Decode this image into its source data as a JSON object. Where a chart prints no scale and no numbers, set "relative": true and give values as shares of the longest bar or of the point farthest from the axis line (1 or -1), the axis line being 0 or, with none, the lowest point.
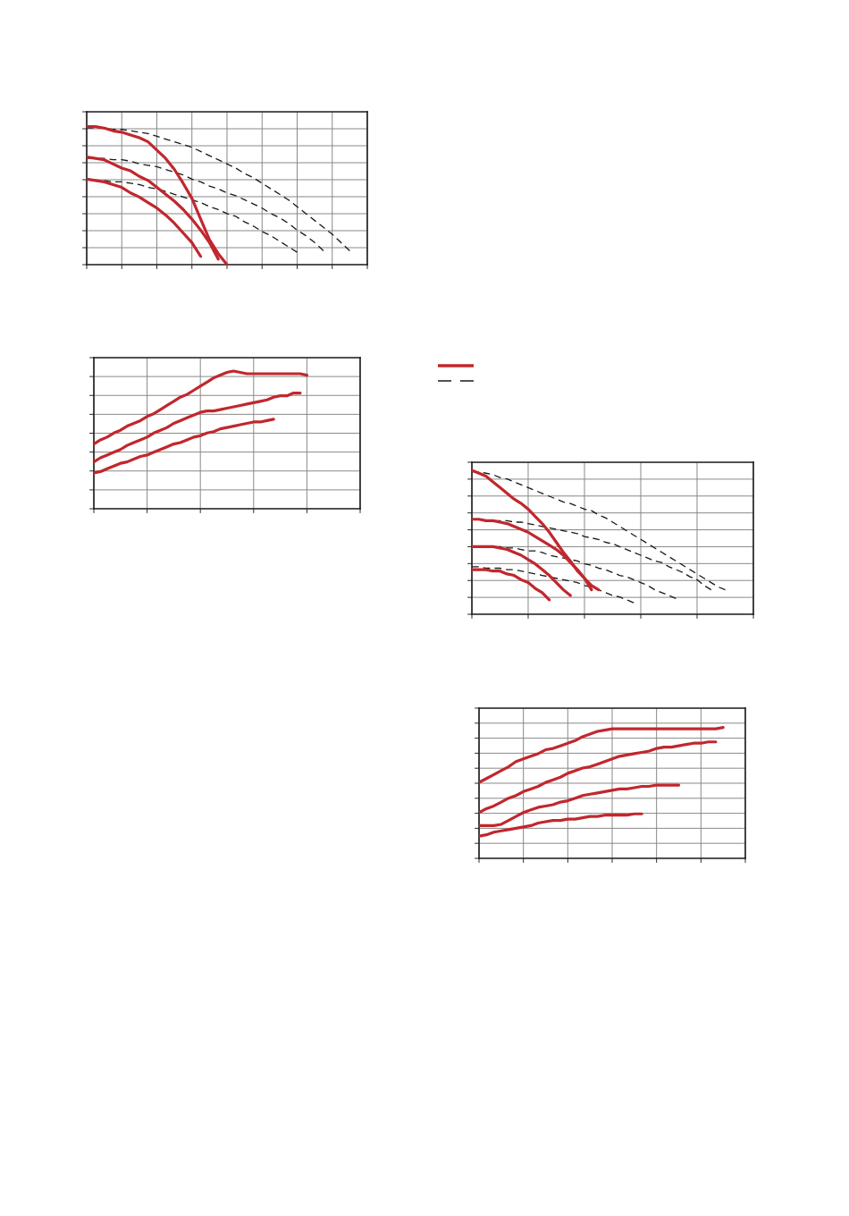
{
  "chart_data": [
    {
      "type": "line",
      "relative": true,
      "grid": true,
      "categories": [
        null,
        null,
        null,
        null,
        null,
        null,
        null,
        null,
        null,
        null,
        null,
        null,
        null,
        null,
        null,
        null,
        null,
        null,
        null,
        null,
        null,
        null,
        null,
        null,
        null,
        null,
        null,
        null,
        null,
        null,
        null,
        null,
        null
      ],
      "series": [
        {
          "color": "#c1272d",
          "line_style": "solid",
          "values": [
            1,
            1,
            0.99,
            0.97,
            0.96,
            0.94,
            0.92,
            0.89,
            0.83,
            0.77,
            0.69,
            0.59,
            0.48,
            0.33,
            0.18,
            0.08,
            0,
            null,
            null,
            null,
            null,
            null,
            null,
            null,
            null,
            null,
            null,
            null,
            null,
            null,
            null,
            null,
            null
          ]
        },
        {
          "color": "#c1272d",
          "line_style": "solid",
          "values": [
            0.78,
            0.77,
            0.76,
            0.73,
            0.7,
            0.68,
            0.64,
            0.61,
            0.56,
            0.51,
            0.46,
            0.4,
            0.33,
            0.25,
            0.16,
            0.04,
            null,
            null,
            null,
            null,
            null,
            null,
            null,
            null,
            null,
            null,
            null,
            null,
            null,
            null,
            null,
            null,
            null
          ]
        },
        {
          "color": "#c1272d",
          "line_style": "solid",
          "values": [
            0.62,
            0.61,
            0.6,
            0.58,
            0.56,
            0.52,
            0.49,
            0.45,
            0.41,
            0.36,
            0.3,
            0.23,
            0.16,
            0.06,
            null,
            null,
            null,
            null,
            null,
            null,
            null,
            null,
            null,
            null,
            null,
            null,
            null,
            null,
            null,
            null,
            null,
            null,
            null
          ]
        },
        {
          "color": "#1a1a1a",
          "line_style": "dashed",
          "values": [
            0.99,
            0.99,
            0.99,
            0.98,
            0.98,
            0.97,
            0.96,
            0.95,
            0.93,
            0.91,
            0.89,
            0.87,
            0.85,
            0.82,
            0.79,
            0.76,
            0.73,
            0.7,
            0.66,
            0.63,
            0.59,
            0.55,
            0.51,
            0.47,
            0.42,
            0.37,
            0.32,
            0.27,
            0.22,
            0.16,
            0.1,
            null,
            null
          ]
        },
        {
          "color": "#1a1a1a",
          "line_style": "dashed",
          "values": [
            0.77,
            0.77,
            0.77,
            0.76,
            0.76,
            0.75,
            0.73,
            0.72,
            0.71,
            0.69,
            0.67,
            0.65,
            0.62,
            0.6,
            0.57,
            0.55,
            0.52,
            0.5,
            0.47,
            0.44,
            0.41,
            0.37,
            0.34,
            0.3,
            0.25,
            0.21,
            0.16,
            0.1,
            null,
            null,
            null,
            null,
            null
          ]
        },
        {
          "color": "#1a1a1a",
          "line_style": "dashed",
          "values": [
            null,
            null,
            0.61,
            0.6,
            0.6,
            0.59,
            0.58,
            0.56,
            0.55,
            0.53,
            0.51,
            0.49,
            0.47,
            0.45,
            0.42,
            0.4,
            0.37,
            0.35,
            0.31,
            0.28,
            0.24,
            0.21,
            0.17,
            0.13,
            0.09,
            null,
            null,
            null,
            null,
            null,
            null,
            null,
            null
          ]
        }
      ]
    },
    {
      "type": "line",
      "relative": true,
      "grid": true,
      "categories": [
        null,
        null,
        null,
        null,
        null,
        null,
        null,
        null,
        null,
        null,
        null,
        null,
        null,
        null,
        null,
        null,
        null,
        null,
        null,
        null,
        null,
        null,
        null,
        null,
        null,
        null,
        null,
        null,
        null,
        null,
        null,
        null,
        null,
        null,
        null,
        null,
        null,
        null,
        null,
        null,
        null
      ],
      "series": [
        {
          "color": "#c1272d",
          "line_style": "solid",
          "values": [
            0.47,
            0.5,
            0.52,
            0.55,
            0.57,
            0.6,
            0.62,
            0.64,
            0.67,
            0.69,
            0.72,
            0.75,
            0.78,
            0.81,
            0.83,
            0.86,
            0.89,
            0.92,
            0.95,
            0.97,
            0.99,
            1,
            0.99,
            0.98,
            0.98,
            0.98,
            0.98,
            0.98,
            0.98,
            0.98,
            0.98,
            0.98,
            0.97,
            null,
            null,
            null,
            null,
            null,
            null,
            null,
            null
          ]
        },
        {
          "color": "#c1272d",
          "line_style": "solid",
          "values": [
            0.34,
            0.37,
            0.39,
            0.41,
            0.43,
            0.46,
            0.48,
            0.5,
            0.52,
            0.55,
            0.57,
            0.59,
            0.62,
            0.64,
            0.66,
            0.68,
            0.7,
            0.71,
            0.71,
            0.72,
            0.73,
            0.74,
            0.75,
            0.76,
            0.77,
            0.78,
            0.79,
            0.81,
            0.82,
            0.82,
            0.84,
            0.84,
            null,
            null,
            null,
            null,
            null,
            null,
            null,
            null,
            null
          ]
        },
        {
          "color": "#c1272d",
          "line_style": "solid",
          "values": [
            0.26,
            0.27,
            0.29,
            0.31,
            0.33,
            0.34,
            0.36,
            0.38,
            0.39,
            0.41,
            0.43,
            0.45,
            0.47,
            0.48,
            0.5,
            0.52,
            0.53,
            0.55,
            0.56,
            0.58,
            0.59,
            0.6,
            0.61,
            0.62,
            0.63,
            0.63,
            0.64,
            0.65,
            null,
            null,
            null,
            null,
            null,
            null,
            null,
            null,
            null,
            null,
            null,
            null,
            null
          ]
        }
      ]
    },
    {
      "type": "line",
      "relative": true,
      "grid": true,
      "categories": [
        null,
        null,
        null,
        null,
        null,
        null,
        null,
        null,
        null,
        null,
        null,
        null,
        null,
        null,
        null,
        null,
        null,
        null,
        null,
        null,
        null,
        null,
        null,
        null,
        null,
        null,
        null,
        null,
        null,
        null,
        null,
        null,
        null,
        null,
        null,
        null,
        null,
        null,
        null,
        null,
        null
      ],
      "series": [
        {
          "color": "#c1272d",
          "line_style": "solid",
          "values": [
            1,
            0.98,
            0.96,
            0.92,
            0.88,
            0.84,
            0.8,
            0.77,
            0.73,
            0.68,
            0.63,
            0.57,
            0.5,
            0.43,
            0.37,
            0.3,
            0.25,
            0.2,
            0.17,
            null,
            null,
            null,
            null,
            null,
            null,
            null,
            null,
            null,
            null,
            null,
            null,
            null,
            null,
            null,
            null,
            null,
            null,
            null,
            null,
            null,
            null
          ]
        },
        {
          "color": "#c1272d",
          "line_style": "solid",
          "values": [
            0.66,
            0.66,
            0.65,
            0.65,
            0.64,
            0.63,
            0.61,
            0.59,
            0.57,
            0.54,
            0.51,
            0.48,
            0.45,
            0.41,
            0.36,
            0.31,
            0.25,
            0.17,
            null,
            null,
            null,
            null,
            null,
            null,
            null,
            null,
            null,
            null,
            null,
            null,
            null,
            null,
            null,
            null,
            null,
            null,
            null,
            null,
            null,
            null,
            null
          ]
        },
        {
          "color": "#c1272d",
          "line_style": "solid",
          "values": [
            0.47,
            0.47,
            0.47,
            0.47,
            0.46,
            0.45,
            0.43,
            0.41,
            0.38,
            0.35,
            0.31,
            0.27,
            0.22,
            0.17,
            0.13,
            null,
            null,
            null,
            null,
            null,
            null,
            null,
            null,
            null,
            null,
            null,
            null,
            null,
            null,
            null,
            null,
            null,
            null,
            null,
            null,
            null,
            null,
            null,
            null,
            null,
            null
          ]
        },
        {
          "color": "#c1272d",
          "line_style": "solid",
          "values": [
            0.31,
            0.31,
            0.31,
            0.3,
            0.3,
            0.28,
            0.27,
            0.24,
            0.22,
            0.18,
            0.15,
            0.1,
            null,
            null,
            null,
            null,
            null,
            null,
            null,
            null,
            null,
            null,
            null,
            null,
            null,
            null,
            null,
            null,
            null,
            null,
            null,
            null,
            null,
            null,
            null,
            null,
            null,
            null,
            null,
            null,
            null
          ]
        },
        {
          "color": "#1a1a1a",
          "line_style": "dashed",
          "values": [
            0.99,
            0.99,
            0.98,
            0.97,
            0.95,
            0.94,
            0.92,
            0.9,
            0.88,
            0.86,
            0.84,
            0.82,
            0.8,
            0.78,
            0.77,
            0.75,
            0.73,
            0.72,
            0.69,
            0.67,
            0.64,
            0.61,
            0.58,
            0.55,
            0.52,
            0.49,
            0.46,
            0.43,
            0.4,
            0.37,
            0.34,
            0.31,
            0.28,
            0.25,
            0.22,
            0.19,
            0.17,
            null,
            null,
            null,
            null
          ]
        },
        {
          "color": "#1a1a1a",
          "line_style": "dashed",
          "values": [
            0.66,
            0.66,
            0.65,
            0.65,
            0.65,
            0.65,
            0.64,
            0.64,
            0.63,
            0.62,
            0.61,
            0.6,
            0.59,
            0.58,
            0.57,
            0.56,
            0.54,
            0.53,
            0.52,
            0.5,
            0.49,
            0.47,
            0.45,
            0.43,
            0.41,
            0.39,
            0.37,
            0.36,
            0.33,
            0.31,
            0.29,
            0.26,
            0.24,
            0.2,
            0.17,
            null,
            null,
            null,
            null,
            null,
            null
          ]
        },
        {
          "color": "#1a1a1a",
          "line_style": "dashed",
          "values": [
            0.47,
            0.47,
            0.47,
            0.47,
            0.47,
            0.46,
            0.46,
            0.45,
            0.44,
            0.44,
            0.43,
            0.41,
            0.4,
            0.39,
            0.38,
            0.37,
            0.35,
            0.34,
            0.32,
            0.31,
            0.29,
            0.27,
            0.26,
            0.24,
            0.22,
            0.2,
            0.17,
            0.15,
            0.13,
            0.11,
            null,
            null,
            null,
            null,
            null,
            null,
            null,
            null,
            null,
            null,
            null
          ]
        },
        {
          "color": "#1a1a1a",
          "line_style": "dashed",
          "values": [
            0.33,
            0.33,
            0.32,
            0.32,
            0.32,
            0.31,
            0.31,
            0.3,
            0.29,
            0.28,
            0.27,
            0.26,
            0.25,
            0.24,
            0.23,
            0.22,
            0.2,
            0.19,
            0.17,
            0.15,
            0.13,
            0.12,
            0.1,
            0.08,
            null,
            null,
            null,
            null,
            null,
            null,
            null,
            null,
            null,
            null,
            null,
            null,
            null,
            null,
            null,
            null,
            null
          ]
        }
      ]
    },
    {
      "type": "line",
      "relative": true,
      "grid": true,
      "categories": [
        null,
        null,
        null,
        null,
        null,
        null,
        null,
        null,
        null,
        null,
        null,
        null,
        null,
        null,
        null,
        null,
        null,
        null,
        null,
        null,
        null,
        null,
        null,
        null,
        null,
        null,
        null,
        null,
        null,
        null,
        null,
        null,
        null,
        null,
        null,
        null,
        null
      ],
      "series": [
        {
          "color": "#c1272d",
          "line_style": "solid",
          "values": [
            0.58,
            0.61,
            0.64,
            0.67,
            0.7,
            0.74,
            0.76,
            0.78,
            0.8,
            0.83,
            0.84,
            0.86,
            0.88,
            0.9,
            0.93,
            0.95,
            0.97,
            0.98,
            0.99,
            0.99,
            0.99,
            0.99,
            0.99,
            0.99,
            0.99,
            0.99,
            0.99,
            0.99,
            0.99,
            0.99,
            0.99,
            0.99,
            0.99,
            1,
            null,
            null,
            null
          ]
        },
        {
          "color": "#c1272d",
          "line_style": "solid",
          "values": [
            0.35,
            0.38,
            0.4,
            0.43,
            0.46,
            0.48,
            0.51,
            0.53,
            0.55,
            0.58,
            0.6,
            0.62,
            0.65,
            0.67,
            0.69,
            0.7,
            0.72,
            0.74,
            0.76,
            0.78,
            0.79,
            0.8,
            0.81,
            0.82,
            0.84,
            0.85,
            0.85,
            0.86,
            0.87,
            0.88,
            0.88,
            0.89,
            0.89,
            null,
            null,
            null,
            null
          ]
        },
        {
          "color": "#c1272d",
          "line_style": "solid",
          "values": [
            0.25,
            0.25,
            0.25,
            0.26,
            0.29,
            0.32,
            0.35,
            0.37,
            0.39,
            0.4,
            0.41,
            0.43,
            0.44,
            0.46,
            0.48,
            0.49,
            0.5,
            0.51,
            0.52,
            0.53,
            0.53,
            0.54,
            0.55,
            0.55,
            0.56,
            0.56,
            0.56,
            0.56,
            null,
            null,
            null,
            null,
            null,
            null,
            null,
            null,
            null
          ]
        },
        {
          "color": "#c1272d",
          "line_style": "solid",
          "values": [
            0.17,
            0.18,
            0.2,
            0.21,
            0.22,
            0.23,
            0.24,
            0.25,
            0.27,
            0.28,
            0.29,
            0.29,
            0.3,
            0.3,
            0.31,
            0.32,
            0.32,
            0.33,
            0.33,
            0.33,
            0.33,
            0.34,
            0.34,
            null,
            null,
            null,
            null,
            null,
            null,
            null,
            null,
            null,
            null,
            null,
            null,
            null,
            null
          ]
        }
      ]
    }
  ]
}
